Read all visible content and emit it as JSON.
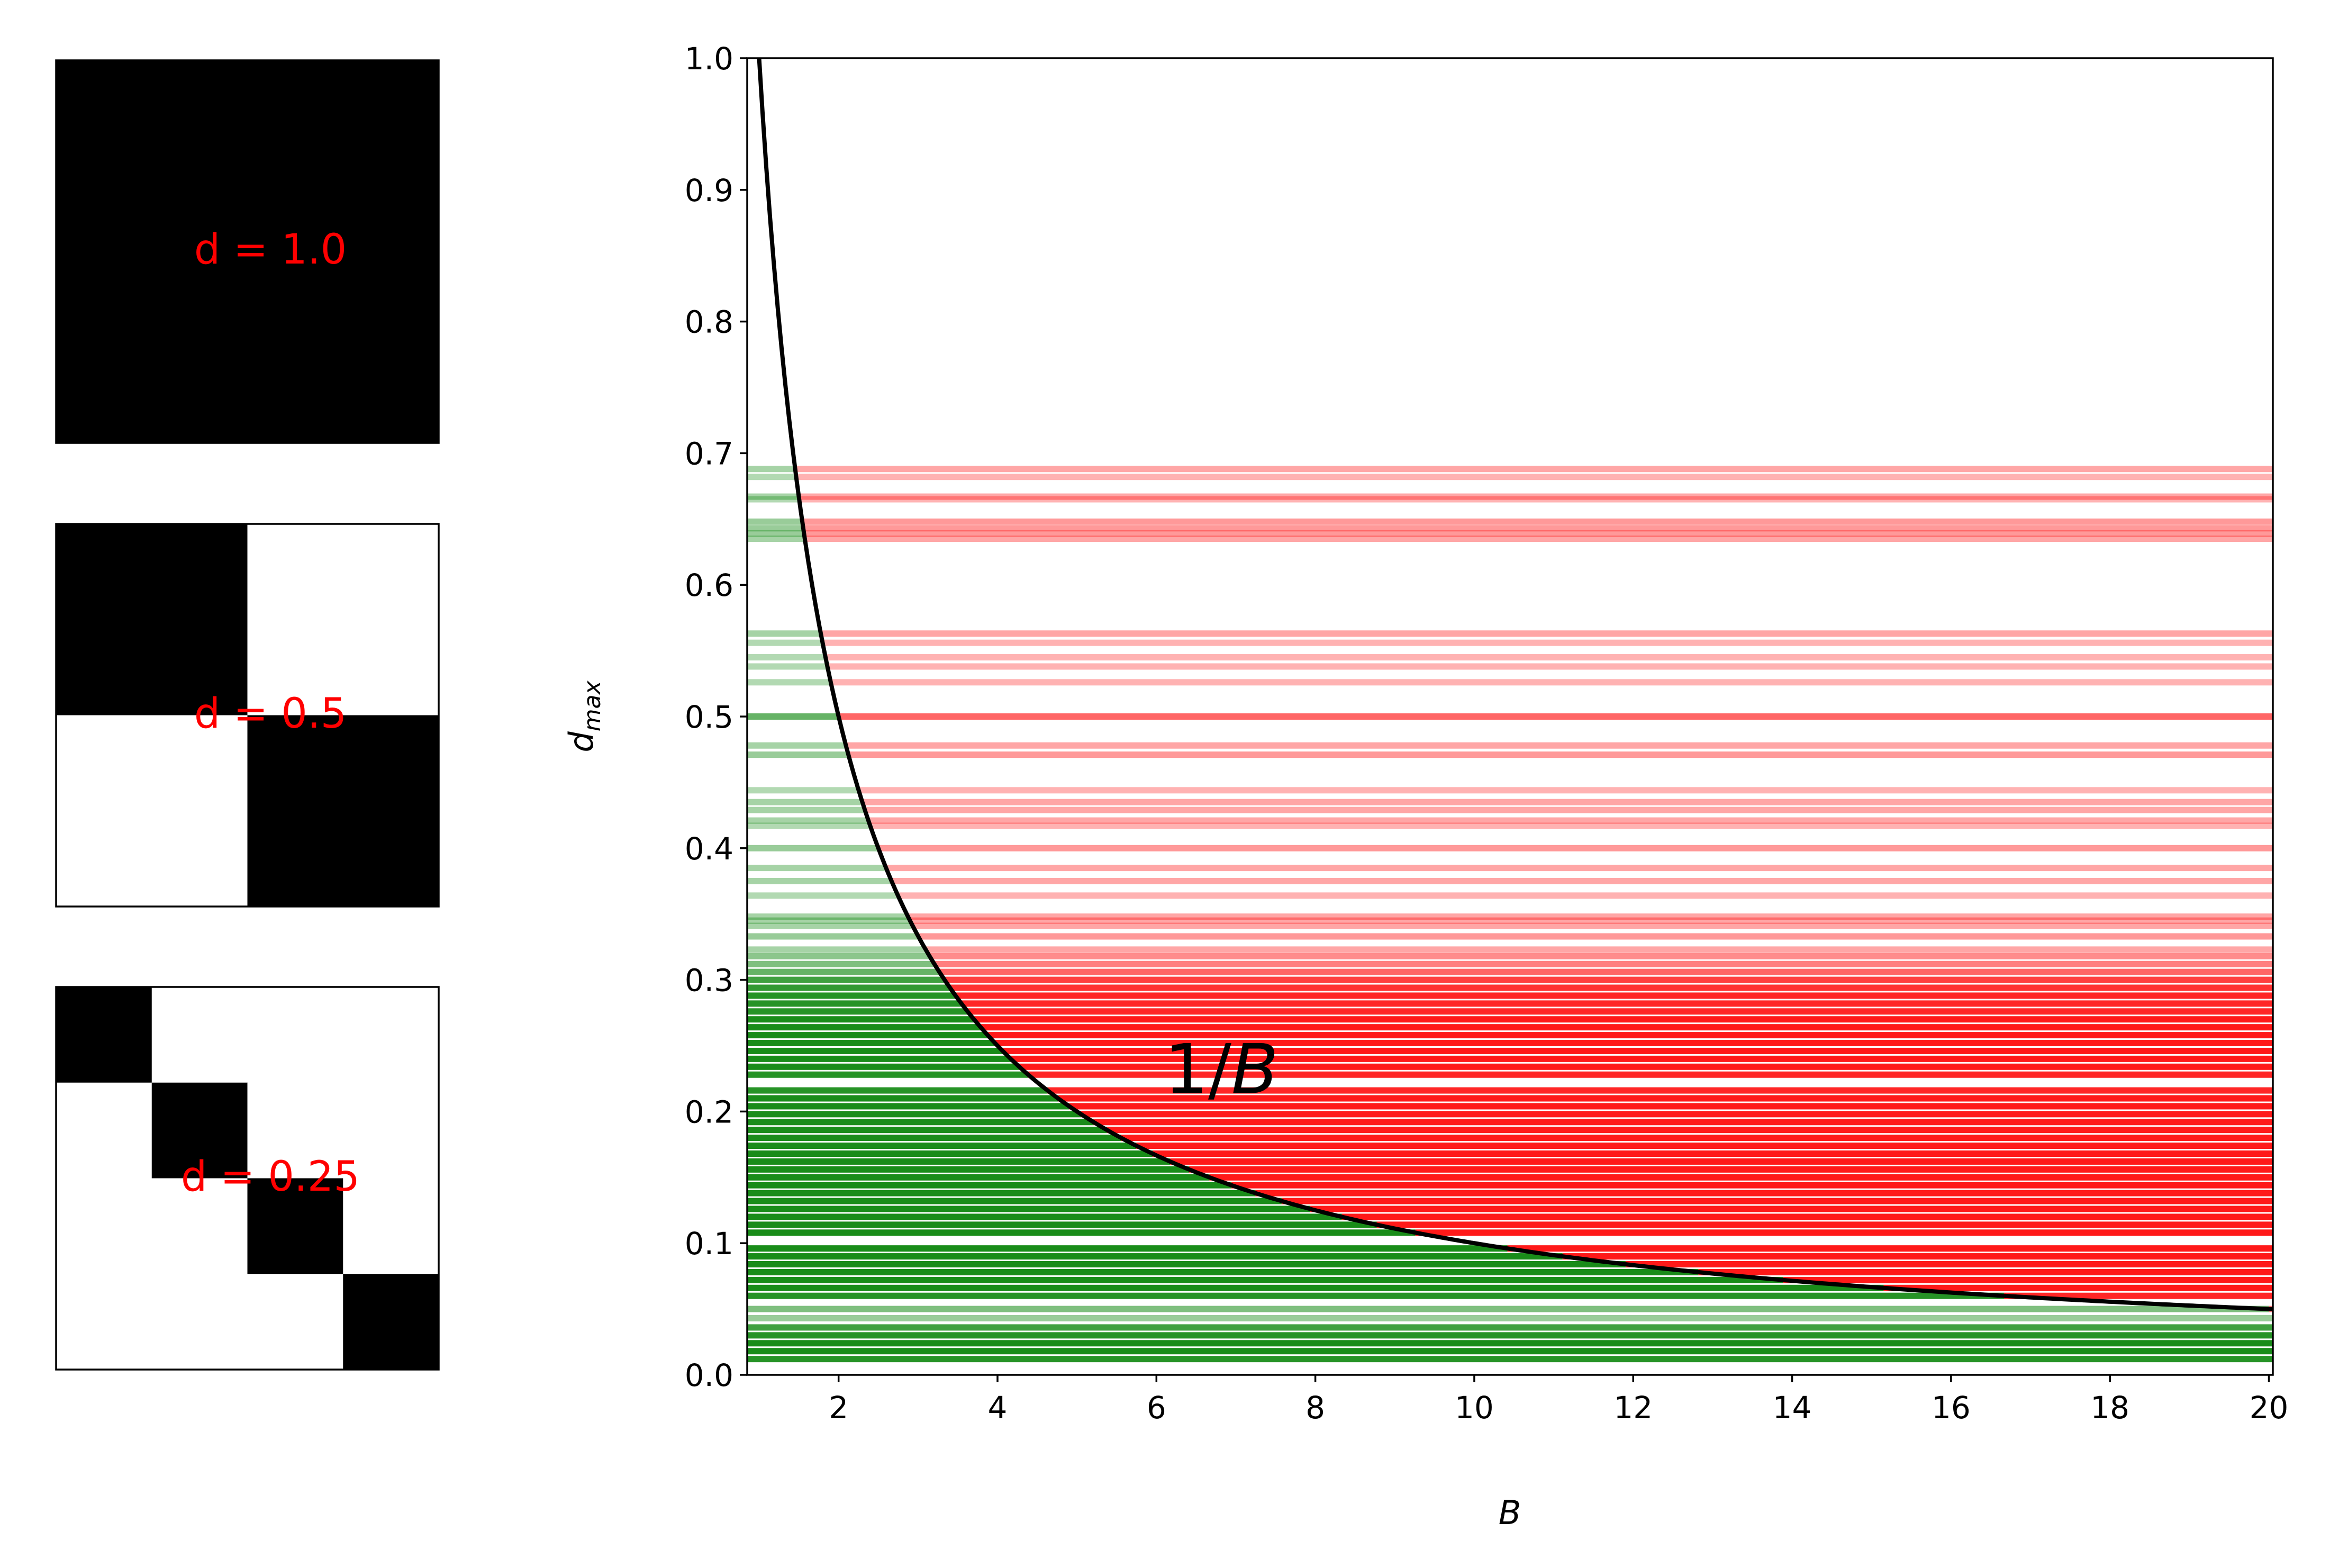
{
  "chart_data": [
    {
      "type": "heatmap",
      "panel": "block-diagonal-matrix",
      "label": "d = 1.0",
      "grid": 1,
      "cells": [
        [
          1
        ]
      ]
    },
    {
      "type": "heatmap",
      "panel": "block-diagonal-matrix",
      "label": "d = 0.5",
      "grid": 2,
      "cells": [
        [
          1,
          0
        ],
        [
          0,
          1
        ]
      ]
    },
    {
      "type": "heatmap",
      "panel": "block-diagonal-matrix",
      "label": "d = 0.25",
      "grid": 4,
      "cells": [
        [
          1,
          0,
          0,
          0
        ],
        [
          0,
          1,
          0,
          0
        ],
        [
          0,
          0,
          1,
          0
        ],
        [
          0,
          0,
          0,
          1
        ]
      ]
    },
    {
      "type": "line",
      "xlabel": "B",
      "ylabel_main": "d",
      "ylabel_sub": "max",
      "xlim": [
        0.85,
        20.05
      ],
      "ylim": [
        0.0,
        1.0
      ],
      "xticks": [
        2,
        4,
        6,
        8,
        10,
        12,
        14,
        16,
        18,
        20
      ],
      "xtick_labels": [
        "2",
        "4",
        "6",
        "8",
        "10",
        "12",
        "14",
        "16",
        "18",
        "20"
      ],
      "yticks": [
        0.0,
        0.1,
        0.2,
        0.3,
        0.4,
        0.5,
        0.6,
        0.7,
        0.8,
        0.9,
        1.0
      ],
      "ytick_labels": [
        "0.0",
        "0.1",
        "0.2",
        "0.3",
        "0.4",
        "0.5",
        "0.6",
        "0.7",
        "0.8",
        "0.9",
        "1.0"
      ],
      "grid": false,
      "curve": {
        "function": "1/B",
        "label_prefix": "1/",
        "label_var": "B",
        "label_position": {
          "x": 6.1,
          "y": 0.23
        },
        "color": "#000000"
      },
      "colors": {
        "below_curve": "#008000",
        "above_curve": "#ff0000"
      },
      "bands": [
        {
          "d": 0.688,
          "alpha": 0.35
        },
        {
          "d": 0.682,
          "alpha": 0.3
        },
        {
          "d": 0.667,
          "alpha": 0.35
        },
        {
          "d": 0.665,
          "alpha": 0.3
        },
        {
          "d": 0.648,
          "alpha": 0.4
        },
        {
          "d": 0.643,
          "alpha": 0.4
        },
        {
          "d": 0.639,
          "alpha": 0.4
        },
        {
          "d": 0.635,
          "alpha": 0.35
        },
        {
          "d": 0.563,
          "alpha": 0.35
        },
        {
          "d": 0.556,
          "alpha": 0.3
        },
        {
          "d": 0.545,
          "alpha": 0.3
        },
        {
          "d": 0.538,
          "alpha": 0.3
        },
        {
          "d": 0.526,
          "alpha": 0.3
        },
        {
          "d": 0.5,
          "alpha": 0.6
        },
        {
          "d": 0.478,
          "alpha": 0.35
        },
        {
          "d": 0.471,
          "alpha": 0.4
        },
        {
          "d": 0.444,
          "alpha": 0.3
        },
        {
          "d": 0.435,
          "alpha": 0.35
        },
        {
          "d": 0.429,
          "alpha": 0.35
        },
        {
          "d": 0.421,
          "alpha": 0.35
        },
        {
          "d": 0.417,
          "alpha": 0.3
        },
        {
          "d": 0.4,
          "alpha": 0.4
        },
        {
          "d": 0.385,
          "alpha": 0.35
        },
        {
          "d": 0.375,
          "alpha": 0.35
        },
        {
          "d": 0.364,
          "alpha": 0.3
        },
        {
          "d": 0.348,
          "alpha": 0.35
        },
        {
          "d": 0.345,
          "alpha": 0.35
        },
        {
          "d": 0.341,
          "alpha": 0.35
        },
        {
          "d": 0.333,
          "alpha": 0.4
        },
        {
          "d": 0.323,
          "alpha": 0.35
        },
        {
          "d": 0.318,
          "alpha": 0.45
        },
        {
          "d": 0.312,
          "alpha": 0.5
        },
        {
          "d": 0.306,
          "alpha": 0.6
        },
        {
          "d": 0.3,
          "alpha": 0.75
        },
        {
          "d": 0.294,
          "alpha": 0.8
        },
        {
          "d": 0.288,
          "alpha": 0.85
        },
        {
          "d": 0.282,
          "alpha": 0.85
        },
        {
          "d": 0.276,
          "alpha": 0.85
        },
        {
          "d": 0.27,
          "alpha": 0.9
        },
        {
          "d": 0.264,
          "alpha": 0.9
        },
        {
          "d": 0.258,
          "alpha": 0.9
        },
        {
          "d": 0.252,
          "alpha": 0.9
        },
        {
          "d": 0.246,
          "alpha": 0.9
        },
        {
          "d": 0.24,
          "alpha": 0.9
        },
        {
          "d": 0.234,
          "alpha": 0.9
        },
        {
          "d": 0.228,
          "alpha": 0.85
        },
        {
          "d": 0.216,
          "alpha": 0.85
        },
        {
          "d": 0.21,
          "alpha": 0.9
        },
        {
          "d": 0.204,
          "alpha": 0.9
        },
        {
          "d": 0.198,
          "alpha": 0.9
        },
        {
          "d": 0.192,
          "alpha": 0.9
        },
        {
          "d": 0.186,
          "alpha": 0.9
        },
        {
          "d": 0.18,
          "alpha": 0.9
        },
        {
          "d": 0.174,
          "alpha": 0.9
        },
        {
          "d": 0.168,
          "alpha": 0.9
        },
        {
          "d": 0.162,
          "alpha": 0.9
        },
        {
          "d": 0.156,
          "alpha": 0.9
        },
        {
          "d": 0.15,
          "alpha": 0.9
        },
        {
          "d": 0.144,
          "alpha": 0.9
        },
        {
          "d": 0.138,
          "alpha": 0.9
        },
        {
          "d": 0.132,
          "alpha": 0.9
        },
        {
          "d": 0.126,
          "alpha": 0.9
        },
        {
          "d": 0.12,
          "alpha": 0.9
        },
        {
          "d": 0.114,
          "alpha": 0.9
        },
        {
          "d": 0.108,
          "alpha": 0.9
        },
        {
          "d": 0.096,
          "alpha": 0.9
        },
        {
          "d": 0.09,
          "alpha": 0.9
        },
        {
          "d": 0.084,
          "alpha": 0.9
        },
        {
          "d": 0.078,
          "alpha": 0.9
        },
        {
          "d": 0.072,
          "alpha": 0.9
        },
        {
          "d": 0.066,
          "alpha": 0.9
        },
        {
          "d": 0.06,
          "alpha": 0.85
        },
        {
          "d": 0.05,
          "alpha": 0.5
        },
        {
          "d": 0.043,
          "alpha": 0.4
        },
        {
          "d": 0.036,
          "alpha": 0.75
        },
        {
          "d": 0.03,
          "alpha": 0.85
        },
        {
          "d": 0.024,
          "alpha": 0.9
        },
        {
          "d": 0.018,
          "alpha": 0.9
        },
        {
          "d": 0.012,
          "alpha": 0.85
        }
      ]
    }
  ]
}
